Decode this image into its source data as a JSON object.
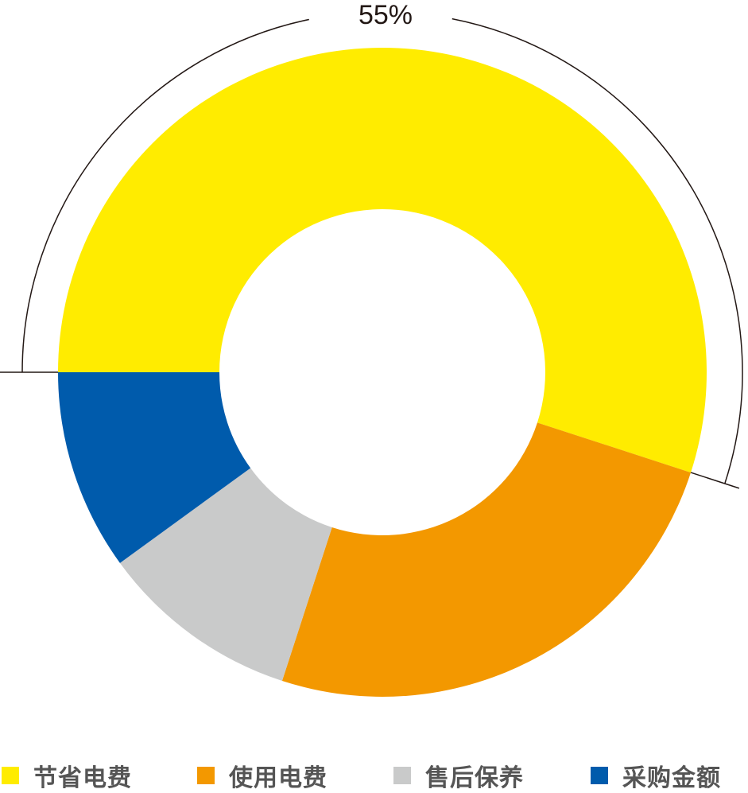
{
  "chart_data": {
    "type": "pie",
    "donut": true,
    "categories": [
      "节省电费",
      "使用电费",
      "售后保养",
      "采购金额"
    ],
    "values": [
      55,
      25,
      10,
      10
    ],
    "colors": [
      "#FFEC00",
      "#F39800",
      "#C9CACA",
      "#005BAC"
    ],
    "annotation": {
      "label": "55%",
      "category": "节省电费"
    },
    "legend_position": "bottom"
  }
}
